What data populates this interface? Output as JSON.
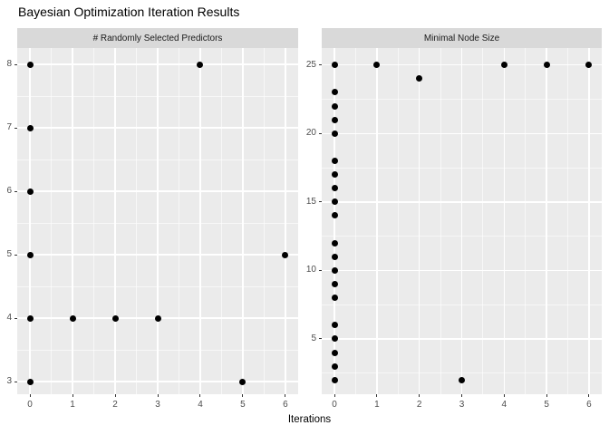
{
  "title": "Bayesian Optimization Iteration Results",
  "chart_data": {
    "type": "scatter",
    "title": "Bayesian Optimization Iteration Results",
    "xlabel": "Iterations",
    "ylabel": "",
    "grid": "on",
    "x_breaks": [
      0,
      1,
      2,
      3,
      4,
      5,
      6
    ],
    "x_minor": [
      0.5,
      1.5,
      2.5,
      3.5,
      4.5,
      5.5
    ],
    "xlim": [
      -0.3,
      6.3
    ],
    "facets": [
      {
        "strip": "# Randomly Selected Predictors",
        "y_breaks": [
          3,
          4,
          5,
          6,
          7,
          8
        ],
        "y_minor": [
          3.5,
          4.5,
          5.5,
          6.5,
          7.5
        ],
        "ylim": [
          2.8,
          8.26
        ],
        "points": [
          [
            0,
            8
          ],
          [
            0,
            7
          ],
          [
            0,
            6
          ],
          [
            0,
            5
          ],
          [
            0,
            4
          ],
          [
            0,
            3
          ],
          [
            1,
            4
          ],
          [
            2,
            4
          ],
          [
            3,
            4
          ],
          [
            4,
            8
          ],
          [
            5,
            3
          ],
          [
            6,
            5
          ]
        ]
      },
      {
        "strip": "Minimal Node Size",
        "y_breaks": [
          5,
          10,
          15,
          20,
          25
        ],
        "y_minor": [
          2.5,
          7.5,
          12.5,
          17.5,
          22.5
        ],
        "ylim": [
          0.96,
          26.24
        ],
        "points": [
          [
            0,
            25
          ],
          [
            0,
            23
          ],
          [
            0,
            22
          ],
          [
            0,
            21
          ],
          [
            0,
            20
          ],
          [
            0,
            18
          ],
          [
            0,
            17
          ],
          [
            0,
            16
          ],
          [
            0,
            15
          ],
          [
            0,
            14
          ],
          [
            0,
            12
          ],
          [
            0,
            11
          ],
          [
            0,
            10
          ],
          [
            0,
            9
          ],
          [
            0,
            8
          ],
          [
            0,
            6
          ],
          [
            0,
            5
          ],
          [
            0,
            4
          ],
          [
            0,
            3
          ],
          [
            0,
            2
          ],
          [
            1,
            25
          ],
          [
            2,
            24
          ],
          [
            3,
            2
          ],
          [
            4,
            25
          ],
          [
            5,
            25
          ],
          [
            6,
            25
          ]
        ]
      }
    ],
    "colors": {
      "panel_bg": "#EBEBEB",
      "strip_bg": "#D9D9D9",
      "grid": "#FFFFFF",
      "point": "#000000",
      "tick_label": "#4D4D4D",
      "strip_text": "#1A1A1A",
      "title": "#000000"
    }
  }
}
